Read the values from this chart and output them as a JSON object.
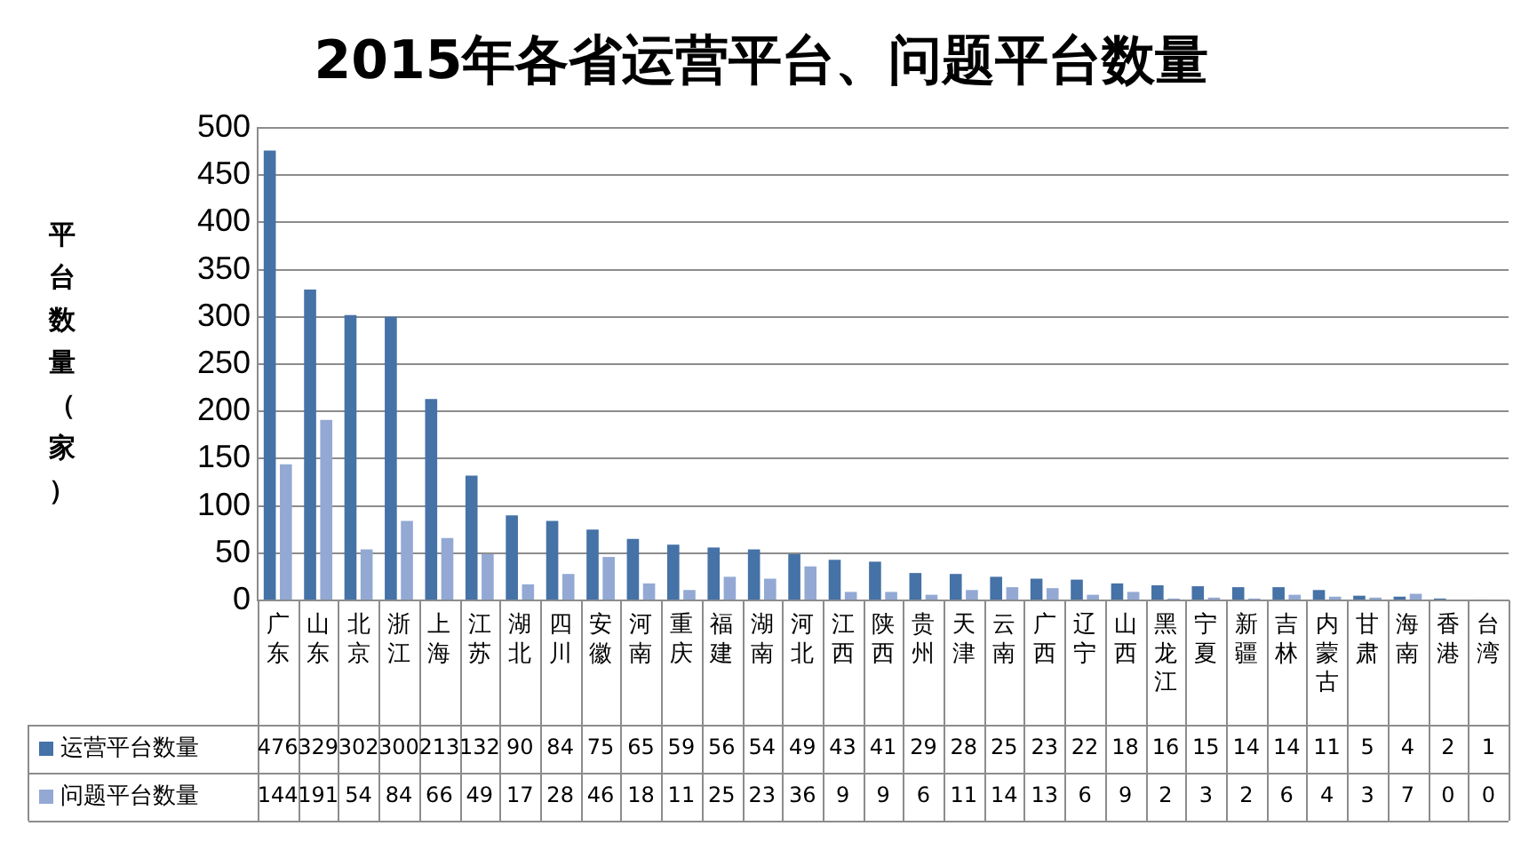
{
  "chart_data": {
    "type": "bar",
    "title": "2015年各省运营平台、问题平台数量",
    "ylabel": "平台数量（家）",
    "categories": [
      "广东",
      "山东",
      "北京",
      "浙江",
      "上海",
      "江苏",
      "湖北",
      "四川",
      "安徽",
      "河南",
      "重庆",
      "福建",
      "湖南",
      "河北",
      "江西",
      "陕西",
      "贵州",
      "天津",
      "云南",
      "广西",
      "辽宁",
      "山西",
      "黑龙江",
      "宁夏",
      "新疆",
      "吉林",
      "内蒙古",
      "甘肃",
      "海南",
      "香港",
      "台湾"
    ],
    "series": [
      {
        "name": "运营平台数量",
        "color": "#4572a7",
        "values": [
          476,
          329,
          302,
          300,
          213,
          132,
          90,
          84,
          75,
          65,
          59,
          56,
          54,
          49,
          43,
          41,
          29,
          28,
          25,
          23,
          22,
          18,
          16,
          15,
          14,
          14,
          11,
          5,
          4,
          2,
          1
        ]
      },
      {
        "name": "问题平台数量",
        "color": "#93a9d4",
        "values": [
          144,
          191,
          54,
          84,
          66,
          49,
          17,
          28,
          46,
          18,
          11,
          25,
          23,
          36,
          9,
          9,
          6,
          11,
          14,
          13,
          6,
          9,
          2,
          3,
          2,
          6,
          4,
          3,
          7,
          0,
          0
        ]
      }
    ],
    "ylim": [
      0,
      500
    ],
    "yticks": [
      0,
      50,
      100,
      150,
      200,
      250,
      300,
      350,
      400,
      450,
      500
    ],
    "grid": "y",
    "legend": "bottom",
    "data_labels": true
  }
}
